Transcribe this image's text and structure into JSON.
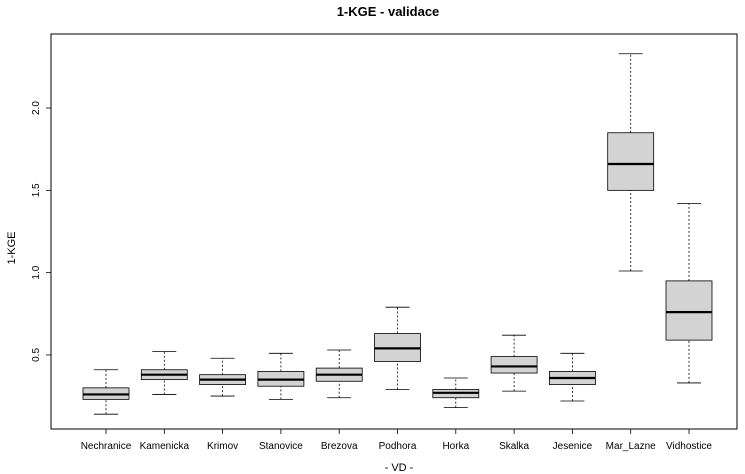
{
  "chart_data": {
    "type": "boxplot",
    "title": "1-KGE - validace",
    "xlabel": "- VD -",
    "ylabel": "1-KGE",
    "ylim": [
      0.05,
      2.45
    ],
    "yticks": [
      0.5,
      1.0,
      1.5,
      2.0
    ],
    "ytick_labels": [
      "0.5",
      "1.0",
      "1.5",
      "2.0"
    ],
    "grid": false,
    "colors": {
      "box_fill": "#d3d3d3",
      "stroke": "#000000",
      "median": "#000000"
    },
    "categories": [
      "Nechranice",
      "Kamenicka",
      "Krimov",
      "Stanovice",
      "Brezova",
      "Podhora",
      "Horka",
      "Skalka",
      "Jesenice",
      "Mar_Lazne",
      "Vidhostice"
    ],
    "boxes": [
      {
        "whisker_low": 0.14,
        "q1": 0.23,
        "median": 0.26,
        "q3": 0.3,
        "whisker_high": 0.41
      },
      {
        "whisker_low": 0.26,
        "q1": 0.35,
        "median": 0.38,
        "q3": 0.41,
        "whisker_high": 0.52
      },
      {
        "whisker_low": 0.25,
        "q1": 0.32,
        "median": 0.35,
        "q3": 0.38,
        "whisker_high": 0.48
      },
      {
        "whisker_low": 0.23,
        "q1": 0.31,
        "median": 0.35,
        "q3": 0.4,
        "whisker_high": 0.51
      },
      {
        "whisker_low": 0.24,
        "q1": 0.34,
        "median": 0.38,
        "q3": 0.42,
        "whisker_high": 0.53
      },
      {
        "whisker_low": 0.29,
        "q1": 0.46,
        "median": 0.54,
        "q3": 0.63,
        "whisker_high": 0.79
      },
      {
        "whisker_low": 0.18,
        "q1": 0.24,
        "median": 0.27,
        "q3": 0.29,
        "whisker_high": 0.36
      },
      {
        "whisker_low": 0.28,
        "q1": 0.39,
        "median": 0.43,
        "q3": 0.49,
        "whisker_high": 0.62
      },
      {
        "whisker_low": 0.22,
        "q1": 0.32,
        "median": 0.36,
        "q3": 0.4,
        "whisker_high": 0.51
      },
      {
        "whisker_low": 1.01,
        "q1": 1.5,
        "median": 1.66,
        "q3": 1.85,
        "whisker_high": 2.33
      },
      {
        "whisker_low": 0.33,
        "q1": 0.59,
        "median": 0.76,
        "q3": 0.95,
        "whisker_high": 1.42
      }
    ]
  }
}
